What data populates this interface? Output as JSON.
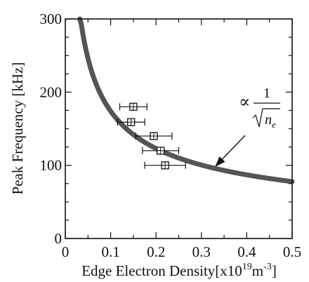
{
  "chart_data": {
    "type": "scatter",
    "xlabel": {
      "main": "Edge Electron Density[x10",
      "exp1": "19",
      "unit": "m",
      "exp2": "-3",
      "close": "]"
    },
    "ylabel": "Peak Frequency [kHz]",
    "xlim": [
      0,
      0.5
    ],
    "ylim": [
      0,
      300
    ],
    "x_ticks": [
      0,
      0.1,
      0.2,
      0.3,
      0.4,
      0.5
    ],
    "x_tick_labels": [
      "0",
      "0.1",
      "0.2",
      "0.3",
      "0.4",
      "0.5"
    ],
    "y_ticks": [
      0,
      100,
      200,
      300
    ],
    "y_tick_labels": [
      "0",
      "100",
      "200",
      "300"
    ],
    "grid": false,
    "points": [
      {
        "x": 0.15,
        "y": 180,
        "xerr": 0.03
      },
      {
        "x": 0.145,
        "y": 159,
        "xerr": 0.03
      },
      {
        "x": 0.195,
        "y": 140,
        "xerr": 0.04
      },
      {
        "x": 0.21,
        "y": 120,
        "xerr": 0.04
      },
      {
        "x": 0.22,
        "y": 100,
        "xerr": 0.045
      }
    ],
    "fit_curve": {
      "form": "A / sqrt(x)",
      "A": 55,
      "x_start": 0.032,
      "x_end": 0.5
    },
    "annotation": {
      "prefix": "∝",
      "numerator": "1",
      "denominator": "n",
      "subscript": "e",
      "arrow_to": {
        "x": 0.33,
        "y": 98
      }
    },
    "colors": {
      "curve": "#555555",
      "ink": "#111111"
    }
  }
}
